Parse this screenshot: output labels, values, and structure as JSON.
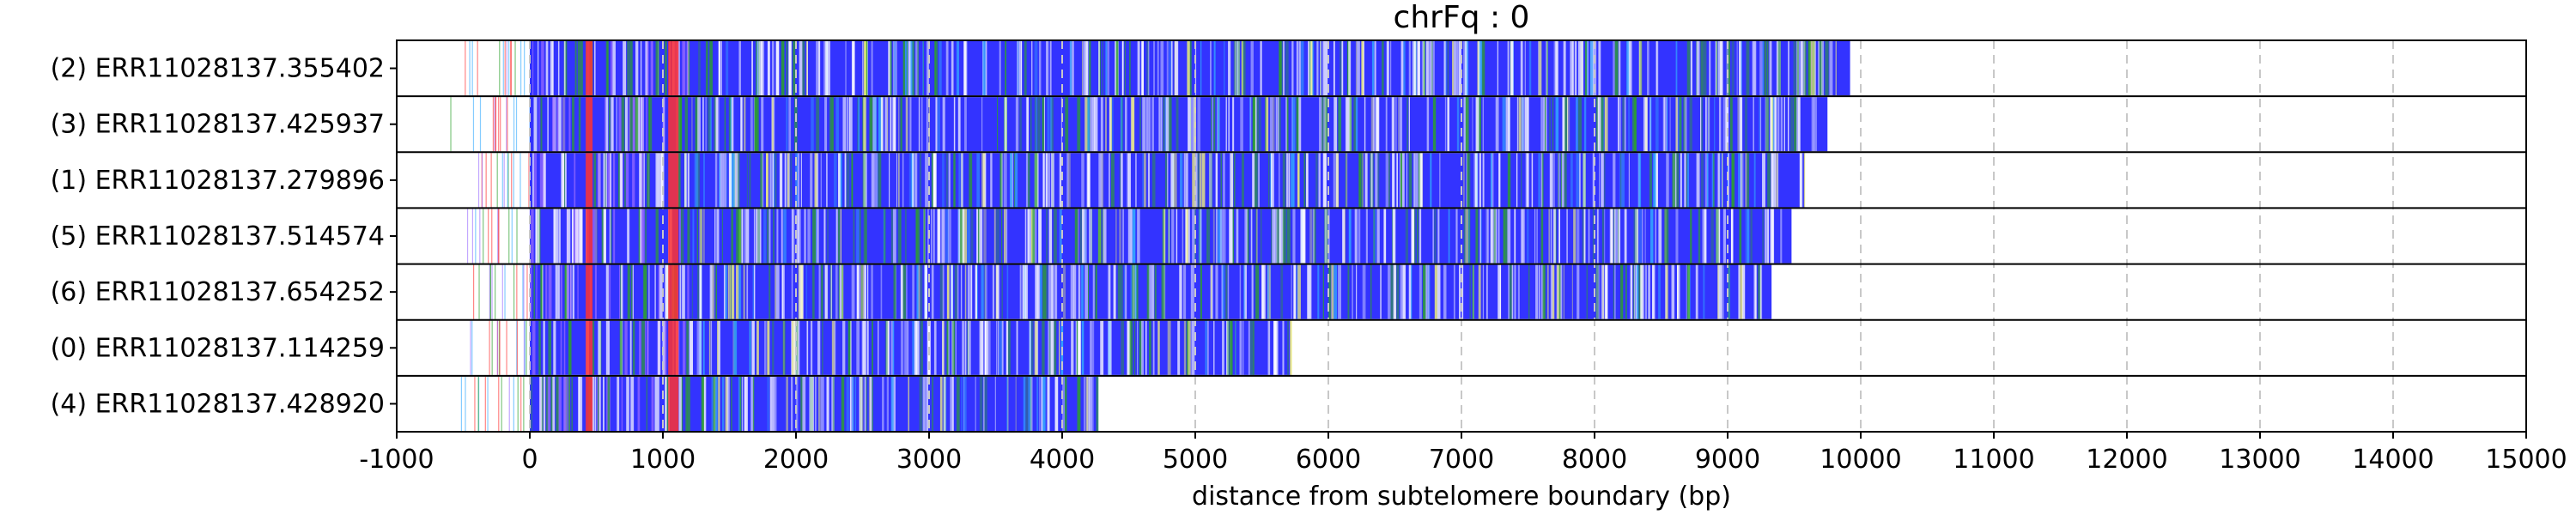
{
  "chart_data": {
    "type": "bar",
    "title": "chrFq : 0",
    "xlabel": "distance from subtelomere boundary (bp)",
    "ylabel": "",
    "xlim": [
      -1000,
      15000
    ],
    "x_ticks": [
      -1000,
      0,
      1000,
      2000,
      3000,
      4000,
      5000,
      6000,
      7000,
      8000,
      9000,
      10000,
      11000,
      12000,
      13000,
      14000,
      15000
    ],
    "grid": "vertical dashed at x ticks",
    "colors": {
      "repeat_blue": "#3333ff",
      "boundary_red": "#ff3333",
      "green": "#2ca02c",
      "yellow": "#f2f27a",
      "cyan": "#33aaff",
      "purple": "#9a6cff",
      "grid": "#c8c8c8"
    },
    "rows": [
      {
        "label": "(2) ERR11028137.355402",
        "start": -550,
        "end": 9920
      },
      {
        "label": "(3) ERR11028137.425937",
        "start": -600,
        "end": 9750
      },
      {
        "label": "(1) ERR11028137.279896",
        "start": -400,
        "end": 9580
      },
      {
        "label": "(5) ERR11028137.514574",
        "start": -480,
        "end": 9480
      },
      {
        "label": "(6) ERR11028137.654252",
        "start": -430,
        "end": 9330
      },
      {
        "label": "(0) ERR11028137.114259",
        "start": -460,
        "end": 5720
      },
      {
        "label": "(4) ERR11028137.428920",
        "start": -540,
        "end": 4270
      }
    ]
  }
}
